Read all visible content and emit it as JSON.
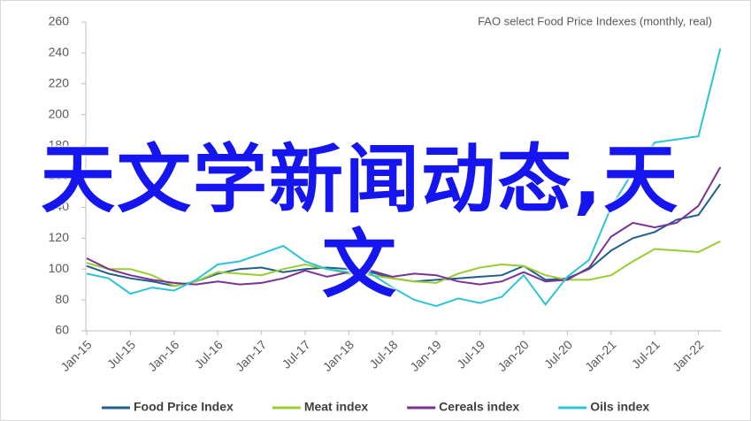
{
  "chart_data": {
    "type": "line",
    "annotation": "FAO select Food Price Indexes (monthly, real)",
    "categories": [
      "Jan-15",
      null,
      "Jul-15",
      null,
      "Jan-16",
      null,
      "Jul-16",
      null,
      "Jan-17",
      null,
      "Jul-17",
      null,
      "Jan-18",
      null,
      "Jul-18",
      null,
      "Jan-19",
      null,
      "Jul-19",
      null,
      "Jan-20",
      null,
      "Jul-20",
      null,
      "Jan-21",
      null,
      "Jul-21",
      null,
      "Jan-22",
      null
    ],
    "series": [
      {
        "name": "Food Price Index",
        "color": "#1f5f8b",
        "values": [
          102,
          97,
          94,
          92,
          89,
          92,
          97,
          100,
          101,
          98,
          100,
          101,
          100,
          98,
          94,
          92,
          93,
          94,
          95,
          96,
          102,
          93,
          94,
          100,
          112,
          120,
          124,
          132,
          135,
          155
        ]
      },
      {
        "name": "Meat index",
        "color": "#9acd32",
        "values": [
          104,
          100,
          100,
          96,
          89,
          92,
          98,
          97,
          96,
          100,
          103,
          100,
          97,
          96,
          94,
          92,
          91,
          97,
          101,
          103,
          102,
          96,
          93,
          93,
          96,
          105,
          113,
          112,
          111,
          118
        ]
      },
      {
        "name": "Cereals index",
        "color": "#7b3294",
        "values": [
          107,
          100,
          96,
          93,
          91,
          90,
          92,
          90,
          91,
          94,
          99,
          95,
          98,
          99,
          95,
          97,
          96,
          92,
          90,
          92,
          98,
          92,
          93,
          101,
          121,
          130,
          127,
          130,
          141,
          166
        ]
      },
      {
        "name": "Oils index",
        "color": "#2ec4d6",
        "values": [
          97,
          94,
          84,
          88,
          86,
          93,
          103,
          105,
          110,
          115,
          105,
          100,
          98,
          97,
          88,
          80,
          76,
          81,
          78,
          82,
          96,
          77,
          95,
          106,
          140,
          163,
          182,
          184,
          186,
          243
        ]
      }
    ],
    "ylim": [
      60,
      260
    ],
    "yticks": [
      60,
      80,
      100,
      120,
      140,
      160,
      180,
      200,
      220,
      240,
      260
    ]
  },
  "overlay_text": "天文学新闻动态,天文"
}
